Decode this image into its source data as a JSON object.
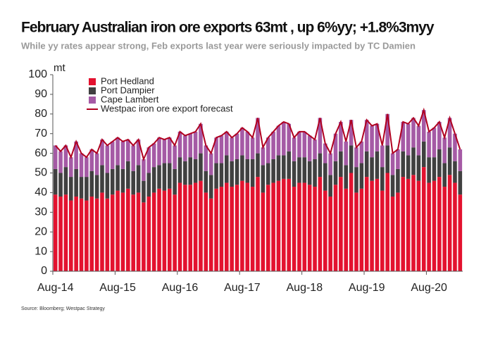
{
  "chart_data": {
    "type": "bar",
    "stacked": true,
    "title": "February Australian iron ore exports 63mt , up 6%yy; +1.8%3myy",
    "subtitle": "While yy rates appear strong, Feb exports last year were seriously impacted by TC Damien",
    "y_label": "mt",
    "source": "Source: Bloomberg; Westpac Strategy",
    "legend": "upper left",
    "categories": [
      "Aug-14",
      null,
      null,
      null,
      null,
      null,
      null,
      null,
      null,
      null,
      null,
      null,
      "Aug-15",
      null,
      null,
      null,
      null,
      null,
      null,
      null,
      null,
      null,
      null,
      null,
      "Aug-16",
      null,
      null,
      null,
      null,
      null,
      null,
      null,
      null,
      null,
      null,
      null,
      "Aug-17",
      null,
      null,
      null,
      null,
      null,
      null,
      null,
      null,
      null,
      null,
      null,
      "Aug-18",
      null,
      null,
      null,
      null,
      null,
      null,
      null,
      null,
      null,
      null,
      null,
      "Aug-19",
      null,
      null,
      null,
      null,
      null,
      null,
      null,
      null,
      null,
      null,
      null,
      "Aug-20",
      null,
      null,
      null,
      null,
      null,
      null
    ],
    "ylim": [
      0,
      100
    ],
    "yticks": [
      0,
      10,
      20,
      30,
      40,
      50,
      60,
      70,
      80,
      90,
      100
    ],
    "series": [
      {
        "name": "Port Hedland",
        "color": "#e3122f",
        "type": "bar",
        "values": [
          39,
          38,
          39,
          36,
          38,
          37,
          36,
          38,
          37,
          40,
          37,
          39,
          41,
          40,
          42,
          39,
          40,
          35,
          38,
          40,
          42,
          41,
          42,
          39,
          45,
          44,
          44,
          45,
          46,
          40,
          37,
          42,
          43,
          45,
          43,
          44,
          46,
          45,
          43,
          48,
          40,
          44,
          45,
          46,
          47,
          47,
          43,
          45,
          45,
          44,
          43,
          48,
          41,
          38,
          44,
          48,
          42,
          50,
          40,
          42,
          48,
          46,
          47,
          41,
          50,
          38,
          40,
          48,
          47,
          49,
          46,
          53,
          45,
          46,
          48,
          43,
          49,
          45,
          39
        ]
      },
      {
        "name": "Port Dampier",
        "color": "#404040",
        "type": "bar",
        "values": [
          13,
          12,
          14,
          12,
          14,
          11,
          12,
          13,
          12,
          14,
          13,
          13,
          13,
          12,
          14,
          12,
          14,
          11,
          12,
          13,
          12,
          14,
          13,
          13,
          13,
          12,
          14,
          12,
          14,
          11,
          12,
          13,
          12,
          14,
          13,
          13,
          13,
          12,
          14,
          12,
          14,
          11,
          12,
          13,
          12,
          14,
          13,
          13,
          13,
          12,
          14,
          12,
          14,
          11,
          12,
          13,
          12,
          14,
          13,
          13,
          13,
          12,
          14,
          12,
          14,
          11,
          12,
          13,
          12,
          14,
          13,
          13,
          13,
          12,
          14,
          12,
          14,
          11,
          12
        ]
      },
      {
        "name": "Cape Lambert",
        "color": "#a55aa5",
        "type": "bar",
        "values": [
          12,
          11,
          11,
          10,
          14,
          12,
          10,
          11,
          11,
          13,
          14,
          14,
          14,
          14,
          11,
          13,
          13,
          11,
          13,
          12,
          14,
          12,
          13,
          12,
          13,
          13,
          12,
          14,
          15,
          13,
          11,
          13,
          14,
          12,
          12,
          13,
          14,
          14,
          11,
          18,
          9,
          13,
          14,
          15,
          17,
          14,
          12,
          13,
          13,
          13,
          10,
          18,
          10,
          11,
          14,
          15,
          12,
          13,
          10,
          11,
          16,
          16,
          14,
          11,
          16,
          11,
          10,
          15,
          16,
          15,
          15,
          16,
          13,
          15,
          14,
          13,
          15,
          14,
          11
        ]
      },
      {
        "name": "Westpac iron ore export forecast",
        "color": "#b00020",
        "type": "line",
        "values": [
          64,
          61,
          64,
          58,
          66,
          60,
          58,
          62,
          60,
          67,
          64,
          66,
          68,
          66,
          67,
          64,
          67,
          57,
          63,
          65,
          68,
          67,
          68,
          64,
          71,
          69,
          70,
          71,
          75,
          64,
          60,
          68,
          69,
          71,
          68,
          70,
          73,
          71,
          68,
          78,
          63,
          68,
          71,
          74,
          76,
          75,
          68,
          71,
          71,
          69,
          67,
          78,
          65,
          60,
          70,
          76,
          66,
          77,
          63,
          66,
          77,
          74,
          75,
          64,
          80,
          60,
          62,
          76,
          75,
          78,
          74,
          82,
          71,
          73,
          76,
          68,
          78,
          70,
          62
        ]
      }
    ]
  }
}
